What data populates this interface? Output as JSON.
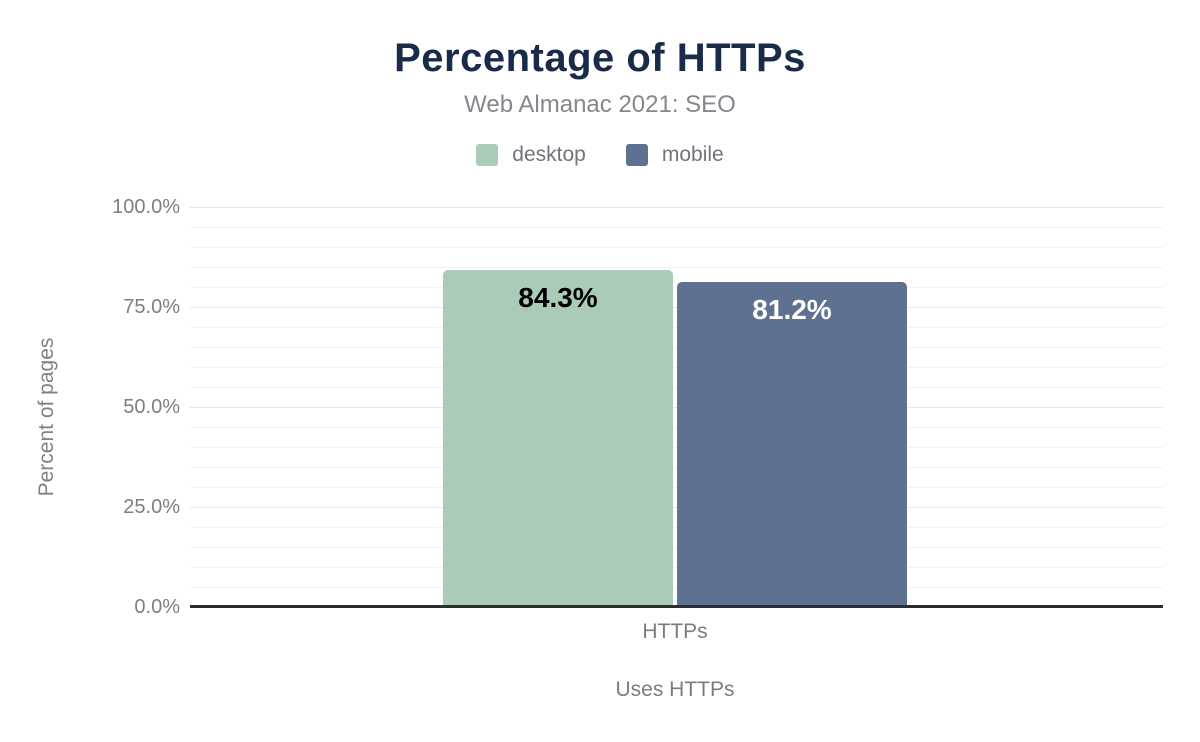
{
  "chart_data": {
    "type": "bar",
    "title": "Percentage of HTTPs",
    "subtitle": "Web Almanac 2021: SEO",
    "categories": [
      "HTTPs"
    ],
    "series": [
      {
        "name": "desktop",
        "values": [
          84.3
        ],
        "data_labels": [
          "84.3%"
        ],
        "color": "#a9cbb7",
        "label_color": "#000000"
      },
      {
        "name": "mobile",
        "values": [
          81.2
        ],
        "data_labels": [
          "81.2%"
        ],
        "color": "#5e7190",
        "label_color": "#ffffff"
      }
    ],
    "xlabel": "Uses HTTPs",
    "ylabel": "Percent of pages",
    "ylim": [
      0,
      100
    ],
    "y_ticks": [
      {
        "value": 0,
        "label": "0.0%"
      },
      {
        "value": 25,
        "label": "25.0%"
      },
      {
        "value": 50,
        "label": "50.0%"
      },
      {
        "value": 75,
        "label": "75.0%"
      },
      {
        "value": 100,
        "label": "100.0%"
      }
    ],
    "minor_gridline_step": 5,
    "grid": true,
    "legend_position": "top",
    "accent_title_color": "#1a2b49"
  }
}
